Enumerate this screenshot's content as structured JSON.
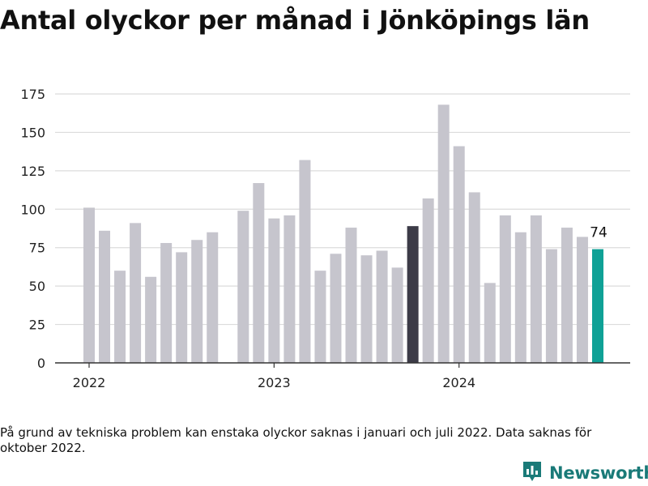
{
  "title": "Antal olyckor per månad i Jönköpings län",
  "footnote": "På grund av tekniska problem kan enstaka olyckor saknas i januari och juli 2022. Data saknas för oktober 2022.",
  "brand": {
    "name": "Newsworthy",
    "icon": "newsworthy-logo-icon",
    "color": "#1a7a78"
  },
  "colors": {
    "bar": "#c6c5cd",
    "highlight_dark": "#3c3b47",
    "highlight_last": "#0fa196",
    "grid": "#dcdcdc",
    "axis": "#333333"
  },
  "chart_data": {
    "type": "bar",
    "title": "Antal olyckor per månad i Jönköpings län",
    "xlabel": "",
    "ylabel": "",
    "ylim": [
      0,
      175
    ],
    "y_ticks": [
      0,
      25,
      50,
      75,
      100,
      125,
      150,
      175
    ],
    "x_tick_labels": [
      {
        "label": "2022",
        "category": "2022-01"
      },
      {
        "label": "2023",
        "category": "2023-01"
      },
      {
        "label": "2024",
        "category": "2024-01"
      }
    ],
    "categories": [
      "2022-01",
      "2022-02",
      "2022-03",
      "2022-04",
      "2022-05",
      "2022-06",
      "2022-07",
      "2022-08",
      "2022-09",
      "2022-10",
      "2022-11",
      "2022-12",
      "2023-01",
      "2023-02",
      "2023-03",
      "2023-04",
      "2023-05",
      "2023-06",
      "2023-07",
      "2023-08",
      "2023-09",
      "2023-10",
      "2023-11",
      "2023-12",
      "2024-01",
      "2024-02",
      "2024-03",
      "2024-04",
      "2024-05",
      "2024-06",
      "2024-07",
      "2024-08",
      "2024-09",
      "2024-10"
    ],
    "values": [
      101,
      86,
      60,
      91,
      56,
      78,
      72,
      80,
      85,
      null,
      99,
      117,
      94,
      96,
      132,
      60,
      71,
      88,
      70,
      73,
      62,
      89,
      107,
      168,
      141,
      111,
      52,
      96,
      85,
      96,
      74,
      88,
      82,
      74
    ],
    "highlights": {
      "2023-10": "dark",
      "2024-10": "last"
    },
    "data_labels": [
      {
        "category": "2024-10",
        "text": "74"
      }
    ],
    "grid": true,
    "legend": "none"
  }
}
